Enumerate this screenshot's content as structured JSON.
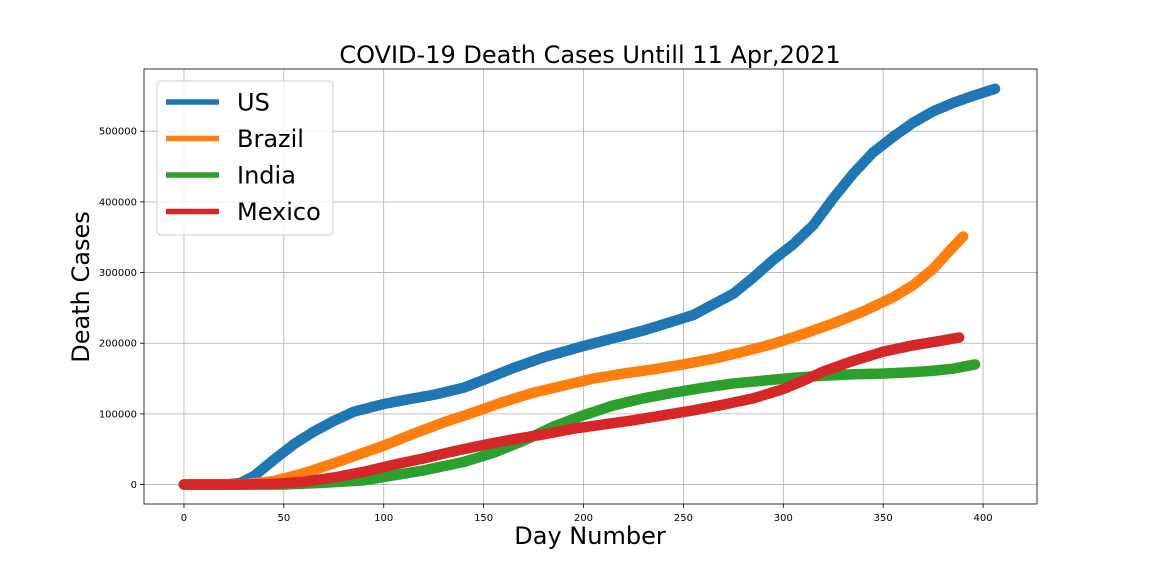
{
  "chart_data": {
    "type": "scatter",
    "title": "COVID-19 Death Cases Untill 11 Apr,2021",
    "xlabel": "Day Number",
    "ylabel": "Death Cases",
    "xlim": [
      -20,
      427
    ],
    "ylim": [
      -27500,
      588000
    ],
    "xticks": [
      0,
      50,
      100,
      150,
      200,
      250,
      300,
      350,
      400
    ],
    "yticks": [
      0,
      100000,
      200000,
      300000,
      400000,
      500000
    ],
    "grid": true,
    "legend_position": "upper-left",
    "series": [
      {
        "name": "US",
        "color": "#1f77b4",
        "points": [
          [
            0,
            0
          ],
          [
            20,
            0
          ],
          [
            28,
            2000
          ],
          [
            35,
            12000
          ],
          [
            45,
            35000
          ],
          [
            55,
            57000
          ],
          [
            65,
            75000
          ],
          [
            75,
            90000
          ],
          [
            85,
            103000
          ],
          [
            100,
            114000
          ],
          [
            115,
            122000
          ],
          [
            125,
            127000
          ],
          [
            140,
            137000
          ],
          [
            150,
            148000
          ],
          [
            165,
            165000
          ],
          [
            180,
            180000
          ],
          [
            200,
            196000
          ],
          [
            215,
            207000
          ],
          [
            230,
            218000
          ],
          [
            245,
            231000
          ],
          [
            255,
            240000
          ],
          [
            265,
            255000
          ],
          [
            275,
            270000
          ],
          [
            285,
            293000
          ],
          [
            295,
            318000
          ],
          [
            305,
            340000
          ],
          [
            315,
            367000
          ],
          [
            325,
            405000
          ],
          [
            335,
            440000
          ],
          [
            345,
            470000
          ],
          [
            355,
            492000
          ],
          [
            365,
            512000
          ],
          [
            375,
            528000
          ],
          [
            385,
            540000
          ],
          [
            395,
            550000
          ],
          [
            406,
            560000
          ]
        ]
      },
      {
        "name": "Brazil",
        "color": "#ff7f0e",
        "points": [
          [
            0,
            0
          ],
          [
            30,
            500
          ],
          [
            45,
            5000
          ],
          [
            60,
            16000
          ],
          [
            75,
            30000
          ],
          [
            90,
            45000
          ],
          [
            100,
            55000
          ],
          [
            115,
            72000
          ],
          [
            130,
            88000
          ],
          [
            145,
            102000
          ],
          [
            160,
            117000
          ],
          [
            175,
            130000
          ],
          [
            190,
            140000
          ],
          [
            205,
            150000
          ],
          [
            220,
            157000
          ],
          [
            235,
            163000
          ],
          [
            250,
            170000
          ],
          [
            265,
            178000
          ],
          [
            280,
            188000
          ],
          [
            295,
            199000
          ],
          [
            310,
            213000
          ],
          [
            325,
            228000
          ],
          [
            340,
            245000
          ],
          [
            355,
            265000
          ],
          [
            365,
            282000
          ],
          [
            375,
            305000
          ],
          [
            383,
            330000
          ],
          [
            390,
            351000
          ]
        ]
      },
      {
        "name": "India",
        "color": "#2ca02c",
        "points": [
          [
            0,
            0
          ],
          [
            50,
            0
          ],
          [
            70,
            2500
          ],
          [
            90,
            6000
          ],
          [
            105,
            13000
          ],
          [
            120,
            20000
          ],
          [
            140,
            32000
          ],
          [
            155,
            45000
          ],
          [
            170,
            62000
          ],
          [
            185,
            82000
          ],
          [
            200,
            98000
          ],
          [
            215,
            112000
          ],
          [
            230,
            122000
          ],
          [
            245,
            130000
          ],
          [
            260,
            137000
          ],
          [
            275,
            143000
          ],
          [
            290,
            147000
          ],
          [
            305,
            151000
          ],
          [
            320,
            154000
          ],
          [
            335,
            156000
          ],
          [
            350,
            157000
          ],
          [
            365,
            159000
          ],
          [
            375,
            161000
          ],
          [
            385,
            164000
          ],
          [
            396,
            170000
          ]
        ]
      },
      {
        "name": "Mexico",
        "color": "#d62728",
        "points": [
          [
            0,
            0
          ],
          [
            30,
            0
          ],
          [
            45,
            1000
          ],
          [
            60,
            4000
          ],
          [
            75,
            10000
          ],
          [
            90,
            18000
          ],
          [
            105,
            28000
          ],
          [
            120,
            37000
          ],
          [
            135,
            47000
          ],
          [
            150,
            56000
          ],
          [
            165,
            64000
          ],
          [
            180,
            71000
          ],
          [
            195,
            79000
          ],
          [
            210,
            85000
          ],
          [
            225,
            91000
          ],
          [
            240,
            98000
          ],
          [
            255,
            105000
          ],
          [
            270,
            113000
          ],
          [
            285,
            122000
          ],
          [
            300,
            135000
          ],
          [
            310,
            147000
          ],
          [
            320,
            160000
          ],
          [
            335,
            175000
          ],
          [
            350,
            188000
          ],
          [
            365,
            197000
          ],
          [
            378,
            203000
          ],
          [
            388,
            208000
          ]
        ]
      }
    ]
  }
}
